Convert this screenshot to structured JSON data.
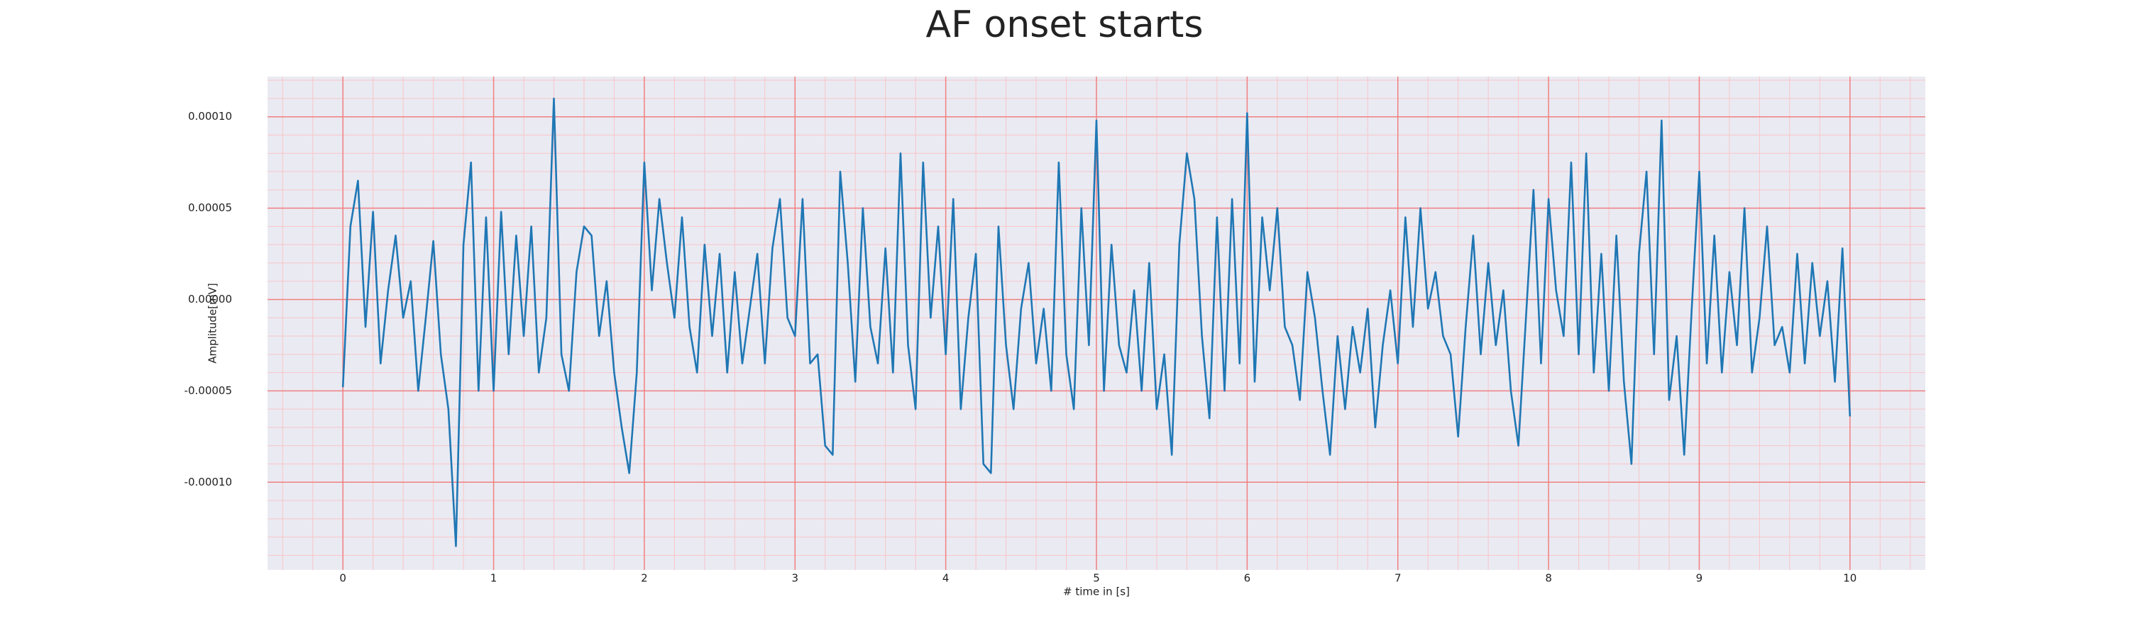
{
  "chart_data": {
    "type": "line",
    "title": "AF onset starts",
    "x_label": "# time in [s]",
    "y_label": "Amplitude[mV]",
    "xlim": [
      -0.5,
      10.5
    ],
    "ylim": [
      -0.000148,
      0.000122
    ],
    "xticks": [
      0,
      1,
      2,
      3,
      4,
      5,
      6,
      7,
      8,
      9,
      10
    ],
    "yticks": [
      {
        "value": -0.0001,
        "label": "-0.00010"
      },
      {
        "value": -5e-05,
        "label": "-0.00005"
      },
      {
        "value": 0,
        "label": "0.00000"
      },
      {
        "value": 5e-05,
        "label": "0.00005"
      },
      {
        "value": 0.0001,
        "label": "0.00010"
      }
    ],
    "grid": true,
    "grid_color": "#f08080",
    "minor_grid": true,
    "minor_grid_color": "#f7c6c9",
    "minor_divisions": 5,
    "background": "#eaeaf2",
    "x": [
      0,
      0.05,
      0.1,
      0.15,
      0.2,
      0.25,
      0.3,
      0.35,
      0.4,
      0.45,
      0.5,
      0.55,
      0.6,
      0.65,
      0.7,
      0.75,
      0.8,
      0.85,
      0.9,
      0.95,
      1,
      1.05,
      1.1,
      1.15,
      1.2,
      1.25,
      1.3,
      1.35,
      1.4,
      1.45,
      1.5,
      1.55,
      1.6,
      1.65,
      1.7,
      1.75,
      1.8,
      1.85,
      1.9,
      1.95,
      2,
      2.05,
      2.1,
      2.15,
      2.2,
      2.25,
      2.3,
      2.35,
      2.4,
      2.45,
      2.5,
      2.55,
      2.6,
      2.65,
      2.7,
      2.75,
      2.8,
      2.85,
      2.9,
      2.95,
      3,
      3.05,
      3.1,
      3.15,
      3.2,
      3.25,
      3.3,
      3.35,
      3.4,
      3.45,
      3.5,
      3.55,
      3.6,
      3.65,
      3.7,
      3.75,
      3.8,
      3.85,
      3.9,
      3.95,
      4,
      4.05,
      4.1,
      4.15,
      4.2,
      4.25,
      4.3,
      4.35,
      4.4,
      4.45,
      4.5,
      4.55,
      4.6,
      4.65,
      4.7,
      4.75,
      4.8,
      4.85,
      4.9,
      4.95,
      5,
      5.05,
      5.1,
      5.15,
      5.2,
      5.25,
      5.3,
      5.35,
      5.4,
      5.45,
      5.5,
      5.55,
      5.6,
      5.65,
      5.7,
      5.75,
      5.8,
      5.85,
      5.9,
      5.95,
      6,
      6.05,
      6.1,
      6.15,
      6.2,
      6.25,
      6.3,
      6.35,
      6.4,
      6.45,
      6.5,
      6.55,
      6.6,
      6.65,
      6.7,
      6.75,
      6.8,
      6.85,
      6.9,
      6.95,
      7,
      7.05,
      7.1,
      7.15,
      7.2,
      7.25,
      7.3,
      7.35,
      7.4,
      7.45,
      7.5,
      7.55,
      7.6,
      7.65,
      7.7,
      7.75,
      7.8,
      7.85,
      7.9,
      7.95,
      8,
      8.05,
      8.1,
      8.15,
      8.2,
      8.25,
      8.3,
      8.35,
      8.4,
      8.45,
      8.5,
      8.55,
      8.6,
      8.65,
      8.7,
      8.75,
      8.8,
      8.85,
      8.9,
      8.95,
      9,
      9.05,
      9.1,
      9.15,
      9.2,
      9.25,
      9.3,
      9.35,
      9.4,
      9.45,
      9.5,
      9.55,
      9.6,
      9.65,
      9.7,
      9.75,
      9.8,
      9.85,
      9.9,
      9.95,
      10
    ],
    "series": [
      {
        "color": "#1f77b4",
        "values": [
          -4.8e-05,
          4e-05,
          6.5e-05,
          -1.5e-05,
          4.8e-05,
          -3.5e-05,
          5e-06,
          3.5e-05,
          -1e-05,
          1e-05,
          -5e-05,
          -1e-05,
          3.2e-05,
          -3e-05,
          -6e-05,
          -0.000135,
          3e-05,
          7.5e-05,
          -5e-05,
          4.5e-05,
          -5e-05,
          4.8e-05,
          -3e-05,
          3.5e-05,
          -2e-05,
          4e-05,
          -4e-05,
          -1e-05,
          0.00011,
          -3e-05,
          -5e-05,
          1.5e-05,
          4e-05,
          3.5e-05,
          -2e-05,
          1e-05,
          -4e-05,
          -7e-05,
          -9.5e-05,
          -4e-05,
          7.5e-05,
          5e-06,
          5.5e-05,
          2e-05,
          -1e-05,
          4.5e-05,
          -1.5e-05,
          -4e-05,
          3e-05,
          -2e-05,
          2.5e-05,
          -4e-05,
          1.5e-05,
          -3.5e-05,
          -5e-06,
          2.5e-05,
          -3.5e-05,
          2.8e-05,
          5.5e-05,
          -1e-05,
          -2e-05,
          5.5e-05,
          -3.5e-05,
          -3e-05,
          -8e-05,
          -8.5e-05,
          7e-05,
          2e-05,
          -4.5e-05,
          5e-05,
          -1.5e-05,
          -3.5e-05,
          2.8e-05,
          -4e-05,
          8e-05,
          -2.5e-05,
          -6e-05,
          7.5e-05,
          -1e-05,
          4e-05,
          -3e-05,
          5.5e-05,
          -6e-05,
          -1e-05,
          2.5e-05,
          -9e-05,
          -9.5e-05,
          4e-05,
          -2.5e-05,
          -6e-05,
          -5e-06,
          2e-05,
          -3.5e-05,
          -5e-06,
          -5e-05,
          7.5e-05,
          -3e-05,
          -6e-05,
          5e-05,
          -2.5e-05,
          9.8e-05,
          -5e-05,
          3e-05,
          -2.5e-05,
          -4e-05,
          5e-06,
          -5e-05,
          2e-05,
          -6e-05,
          -3e-05,
          -8.5e-05,
          3e-05,
          8e-05,
          5.5e-05,
          -2e-05,
          -6.5e-05,
          4.5e-05,
          -5e-05,
          5.5e-05,
          -3.5e-05,
          0.000102,
          -4.5e-05,
          4.5e-05,
          5e-06,
          5e-05,
          -1.5e-05,
          -2.5e-05,
          -5.5e-05,
          1.5e-05,
          -1e-05,
          -5e-05,
          -8.5e-05,
          -2e-05,
          -6e-05,
          -1.5e-05,
          -4e-05,
          -5e-06,
          -7e-05,
          -2.5e-05,
          5e-06,
          -3.5e-05,
          4.5e-05,
          -1.5e-05,
          5e-05,
          -5e-06,
          1.5e-05,
          -2e-05,
          -3e-05,
          -7.5e-05,
          -1.5e-05,
          3.5e-05,
          -3e-05,
          2e-05,
          -2.5e-05,
          5e-06,
          -5e-05,
          -8e-05,
          -1e-05,
          6e-05,
          -3.5e-05,
          5.5e-05,
          5e-06,
          -2e-05,
          7.5e-05,
          -3e-05,
          8e-05,
          -4e-05,
          2.5e-05,
          -5e-05,
          3.5e-05,
          -4.5e-05,
          -9e-05,
          2.5e-05,
          7e-05,
          -3e-05,
          9.8e-05,
          -5.5e-05,
          -2e-05,
          -8.5e-05,
          -5e-06,
          7e-05,
          -3.5e-05,
          3.5e-05,
          -4e-05,
          1.5e-05,
          -2.5e-05,
          5e-05,
          -4e-05,
          -1e-05,
          4e-05,
          -2.5e-05,
          -1.5e-05,
          -4e-05,
          2.5e-05,
          -3.5e-05,
          2e-05,
          -2e-05,
          1e-05,
          -4.5e-05,
          2.8e-05,
          -6.4e-05
        ]
      }
    ]
  }
}
